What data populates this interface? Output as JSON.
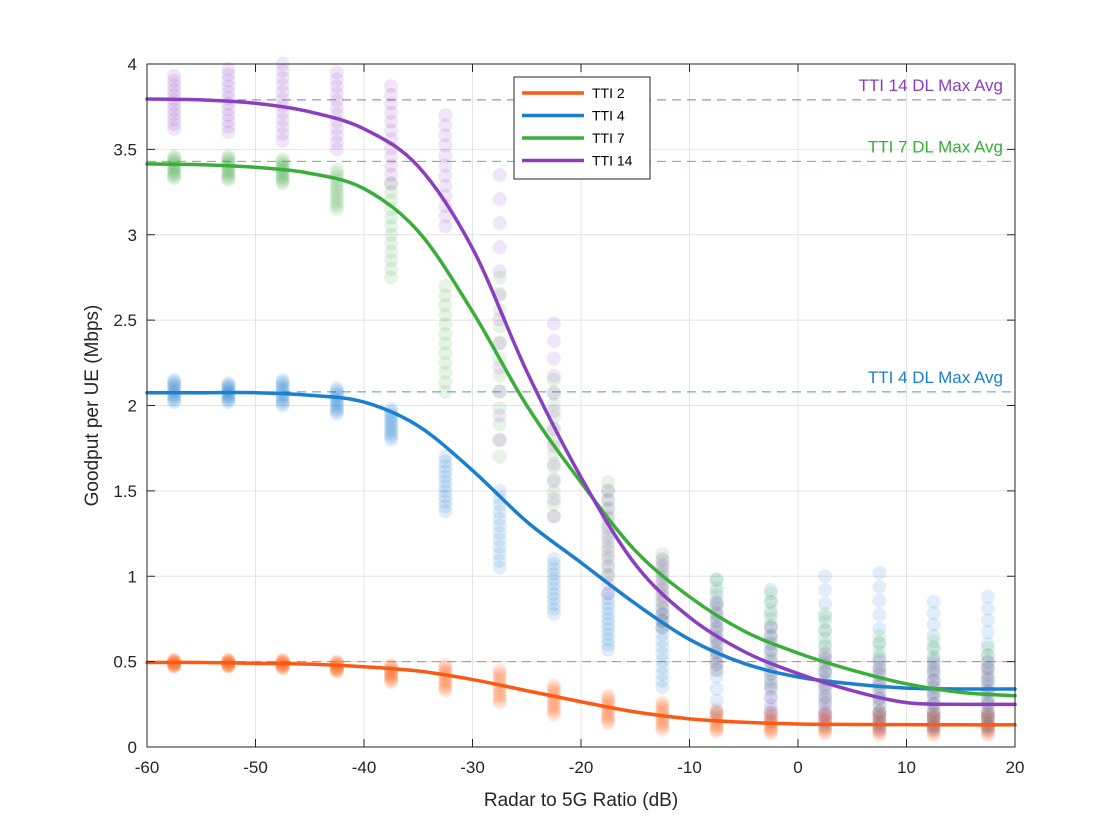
{
  "chart_data": {
    "type": "scatter",
    "xlabel": "Radar to 5G Ratio (dB)",
    "ylabel": "Goodput per UE (Mbps)",
    "xlim": [
      -60,
      20
    ],
    "ylim": [
      0,
      4
    ],
    "xticks": [
      -60,
      -50,
      -40,
      -30,
      -20,
      -10,
      0,
      10,
      20
    ],
    "xtick_labels": [
      "-60",
      "-50",
      "-40",
      "-30",
      "-20",
      "-10",
      "0",
      "10",
      "20"
    ],
    "yticks": [
      0,
      0.5,
      1,
      1.5,
      2,
      2.5,
      3,
      3.5,
      4
    ],
    "ytick_labels": [
      "0",
      "0.5",
      "1",
      "1.5",
      "2",
      "2.5",
      "3",
      "3.5",
      "4"
    ],
    "grid": true,
    "legend_position": "top-center",
    "scatter_x": [
      -57.5,
      -52.5,
      -47.5,
      -42.5,
      -37.5,
      -32.5,
      -27.5,
      -22.5,
      -17.5,
      -12.5,
      -7.5,
      -2.5,
      2.5,
      7.5,
      12.5,
      17.5
    ],
    "series": [
      {
        "name": "TTI 2",
        "color": "#fc5a12",
        "curve_x": [
          -60,
          -55,
          -50,
          -45,
          -40,
          -35,
          -30,
          -25,
          -20,
          -15,
          -10,
          -5,
          0,
          5,
          10,
          15,
          20
        ],
        "curve_y": [
          0.495,
          0.495,
          0.49,
          0.485,
          0.47,
          0.445,
          0.395,
          0.33,
          0.265,
          0.205,
          0.165,
          0.145,
          0.135,
          0.132,
          0.131,
          0.13,
          0.13
        ],
        "scatter": [
          {
            "ymin": 0.47,
            "ymax": 0.51
          },
          {
            "ymin": 0.47,
            "ymax": 0.51
          },
          {
            "ymin": 0.46,
            "ymax": 0.51
          },
          {
            "ymin": 0.44,
            "ymax": 0.5
          },
          {
            "ymin": 0.38,
            "ymax": 0.48
          },
          {
            "ymin": 0.33,
            "ymax": 0.48
          },
          {
            "ymin": 0.26,
            "ymax": 0.45
          },
          {
            "ymin": 0.19,
            "ymax": 0.36
          },
          {
            "ymin": 0.14,
            "ymax": 0.3
          },
          {
            "ymin": 0.1,
            "ymax": 0.26
          },
          {
            "ymin": 0.09,
            "ymax": 0.22
          },
          {
            "ymin": 0.08,
            "ymax": 0.2
          },
          {
            "ymin": 0.08,
            "ymax": 0.2
          },
          {
            "ymin": 0.07,
            "ymax": 0.2
          },
          {
            "ymin": 0.07,
            "ymax": 0.2
          },
          {
            "ymin": 0.07,
            "ymax": 0.2
          }
        ],
        "ref_y": 0.5,
        "ref_label": ""
      },
      {
        "name": "TTI 4",
        "color": "#1a7fcf",
        "curve_x": [
          -60,
          -55,
          -50,
          -45,
          -40,
          -35,
          -30,
          -25,
          -20,
          -15,
          -10,
          -5,
          0,
          5,
          10,
          15,
          20
        ],
        "curve_y": [
          2.075,
          2.075,
          2.075,
          2.06,
          2.02,
          1.88,
          1.62,
          1.32,
          1.08,
          0.84,
          0.63,
          0.49,
          0.41,
          0.37,
          0.345,
          0.34,
          0.34
        ],
        "scatter": [
          {
            "ymin": 2.02,
            "ymax": 2.15
          },
          {
            "ymin": 2.02,
            "ymax": 2.13
          },
          {
            "ymin": 2.0,
            "ymax": 2.15
          },
          {
            "ymin": 1.95,
            "ymax": 2.1
          },
          {
            "ymin": 1.8,
            "ymax": 1.98
          },
          {
            "ymin": 1.38,
            "ymax": 1.7
          },
          {
            "ymin": 1.05,
            "ymax": 1.5
          },
          {
            "ymin": 0.78,
            "ymax": 1.1
          },
          {
            "ymin": 0.57,
            "ymax": 0.9
          },
          {
            "ymin": 0.35,
            "ymax": 0.78
          },
          {
            "ymin": 0.2,
            "ymax": 0.98
          },
          {
            "ymin": 0.15,
            "ymax": 0.92
          },
          {
            "ymin": 0.12,
            "ymax": 1.0
          },
          {
            "ymin": 0.12,
            "ymax": 1.02
          },
          {
            "ymin": 0.12,
            "ymax": 0.85
          },
          {
            "ymin": 0.12,
            "ymax": 0.88
          }
        ],
        "ref_y": 2.08,
        "ref_label": "TTI 4 DL Max Avg"
      },
      {
        "name": "TTI 7",
        "color": "#3bad3b",
        "curve_x": [
          -60,
          -55,
          -50,
          -45,
          -40,
          -35,
          -30,
          -25,
          -20,
          -15,
          -10,
          -5,
          0,
          5,
          10,
          15,
          20
        ],
        "curve_y": [
          3.415,
          3.41,
          3.395,
          3.36,
          3.27,
          3.02,
          2.55,
          2.0,
          1.55,
          1.15,
          0.88,
          0.68,
          0.55,
          0.45,
          0.37,
          0.32,
          0.3
        ],
        "scatter": [
          {
            "ymin": 3.33,
            "ymax": 3.46
          },
          {
            "ymin": 3.32,
            "ymax": 3.46
          },
          {
            "ymin": 3.3,
            "ymax": 3.44
          },
          {
            "ymin": 3.15,
            "ymax": 3.38
          },
          {
            "ymin": 2.75,
            "ymax": 3.3
          },
          {
            "ymin": 2.08,
            "ymax": 2.7
          },
          {
            "ymin": 1.7,
            "ymax": 2.75
          },
          {
            "ymin": 1.35,
            "ymax": 2.15
          },
          {
            "ymin": 1.0,
            "ymax": 1.55
          },
          {
            "ymin": 0.7,
            "ymax": 1.13
          },
          {
            "ymin": 0.45,
            "ymax": 0.98
          },
          {
            "ymin": 0.35,
            "ymax": 0.9
          },
          {
            "ymin": 0.25,
            "ymax": 0.78
          },
          {
            "ymin": 0.15,
            "ymax": 0.65
          },
          {
            "ymin": 0.12,
            "ymax": 0.62
          },
          {
            "ymin": 0.12,
            "ymax": 0.58
          }
        ],
        "ref_y": 3.43,
        "ref_label": "TTI 7 DL Max Avg"
      },
      {
        "name": "TTI 14",
        "color": "#8a3fbf",
        "curve_x": [
          -60,
          -55,
          -50,
          -45,
          -40,
          -35,
          -30,
          -25,
          -20,
          -15,
          -10,
          -5,
          0,
          5,
          10,
          15,
          20
        ],
        "curve_y": [
          3.795,
          3.79,
          3.77,
          3.72,
          3.62,
          3.4,
          2.92,
          2.2,
          1.58,
          1.07,
          0.76,
          0.56,
          0.43,
          0.33,
          0.26,
          0.25,
          0.25
        ],
        "scatter": [
          {
            "ymin": 3.62,
            "ymax": 3.93
          },
          {
            "ymin": 3.6,
            "ymax": 3.97
          },
          {
            "ymin": 3.55,
            "ymax": 4.0
          },
          {
            "ymin": 3.5,
            "ymax": 3.95
          },
          {
            "ymin": 3.3,
            "ymax": 3.87
          },
          {
            "ymin": 3.05,
            "ymax": 3.7
          },
          {
            "ymin": 1.8,
            "ymax": 3.35
          },
          {
            "ymin": 1.35,
            "ymax": 2.48
          },
          {
            "ymin": 0.9,
            "ymax": 1.5
          },
          {
            "ymin": 0.7,
            "ymax": 1.1
          },
          {
            "ymin": 0.45,
            "ymax": 0.85
          },
          {
            "ymin": 0.2,
            "ymax": 0.7
          },
          {
            "ymin": 0.15,
            "ymax": 0.55
          },
          {
            "ymin": 0.1,
            "ymax": 0.5
          },
          {
            "ymin": 0.1,
            "ymax": 0.5
          },
          {
            "ymin": 0.1,
            "ymax": 0.5
          }
        ],
        "ref_y": 3.79,
        "ref_label": "TTI 14 DL Max Avg"
      }
    ]
  }
}
